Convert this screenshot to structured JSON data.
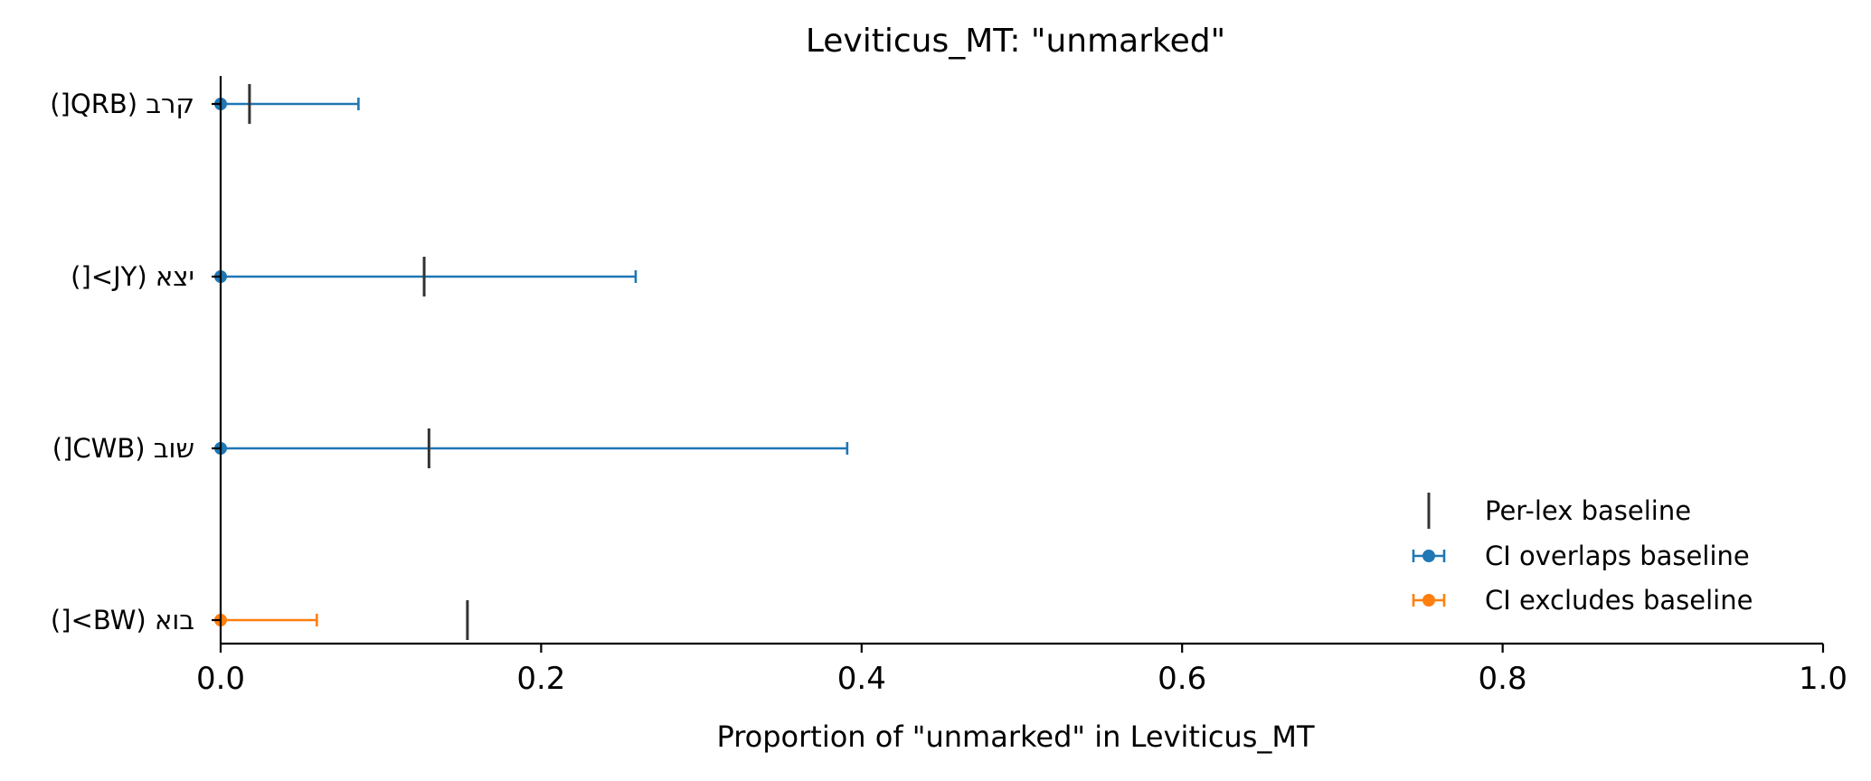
{
  "chart_data": {
    "type": "scatter",
    "title": "Leviticus_MT: \"unmarked\"",
    "xlabel": "Proportion of \"unmarked\" in Leviticus_MT",
    "ylabel": "",
    "xlim": [
      0.0,
      1.0
    ],
    "xticks": [
      {
        "value": 0.0,
        "label": "0.0"
      },
      {
        "value": 0.2,
        "label": "0.2"
      },
      {
        "value": 0.4,
        "label": "0.4"
      },
      {
        "value": 0.6,
        "label": "0.6"
      },
      {
        "value": 0.8,
        "label": "0.8"
      },
      {
        "value": 1.0,
        "label": "1.0"
      }
    ],
    "grid": false,
    "legend_position": "lower-right",
    "categories": [
      "קרב (QRB[)",
      "יצא (JY>[)",
      "שוב (CWB[)",
      "בוא (BW>[)"
    ],
    "rows": [
      {
        "label": "קרב (QRB[)",
        "value": 0.0,
        "ci_low": 0.0,
        "ci_high": 0.086,
        "baseline": 0.018,
        "status": "overlaps"
      },
      {
        "label": "יצא (JY>[)",
        "value": 0.0,
        "ci_low": 0.0,
        "ci_high": 0.259,
        "baseline": 0.127,
        "status": "overlaps"
      },
      {
        "label": "שוב (CWB[)",
        "value": 0.0,
        "ci_low": 0.0,
        "ci_high": 0.391,
        "baseline": 0.13,
        "status": "overlaps"
      },
      {
        "label": "בוא (BW>[)",
        "value": 0.0,
        "ci_low": 0.0,
        "ci_high": 0.06,
        "baseline": 0.154,
        "status": "excludes"
      }
    ],
    "legend": [
      {
        "key": "baseline",
        "label": "Per-lex baseline",
        "color": "#333333"
      },
      {
        "key": "overlaps",
        "label": "CI overlaps baseline",
        "color": "#1f77b4"
      },
      {
        "key": "excludes",
        "label": "CI excludes baseline",
        "color": "#ff7f0e"
      }
    ],
    "colors": {
      "overlaps": "#1f77b4",
      "excludes": "#ff7f0e",
      "baseline": "#333333",
      "axis": "#000000"
    }
  }
}
